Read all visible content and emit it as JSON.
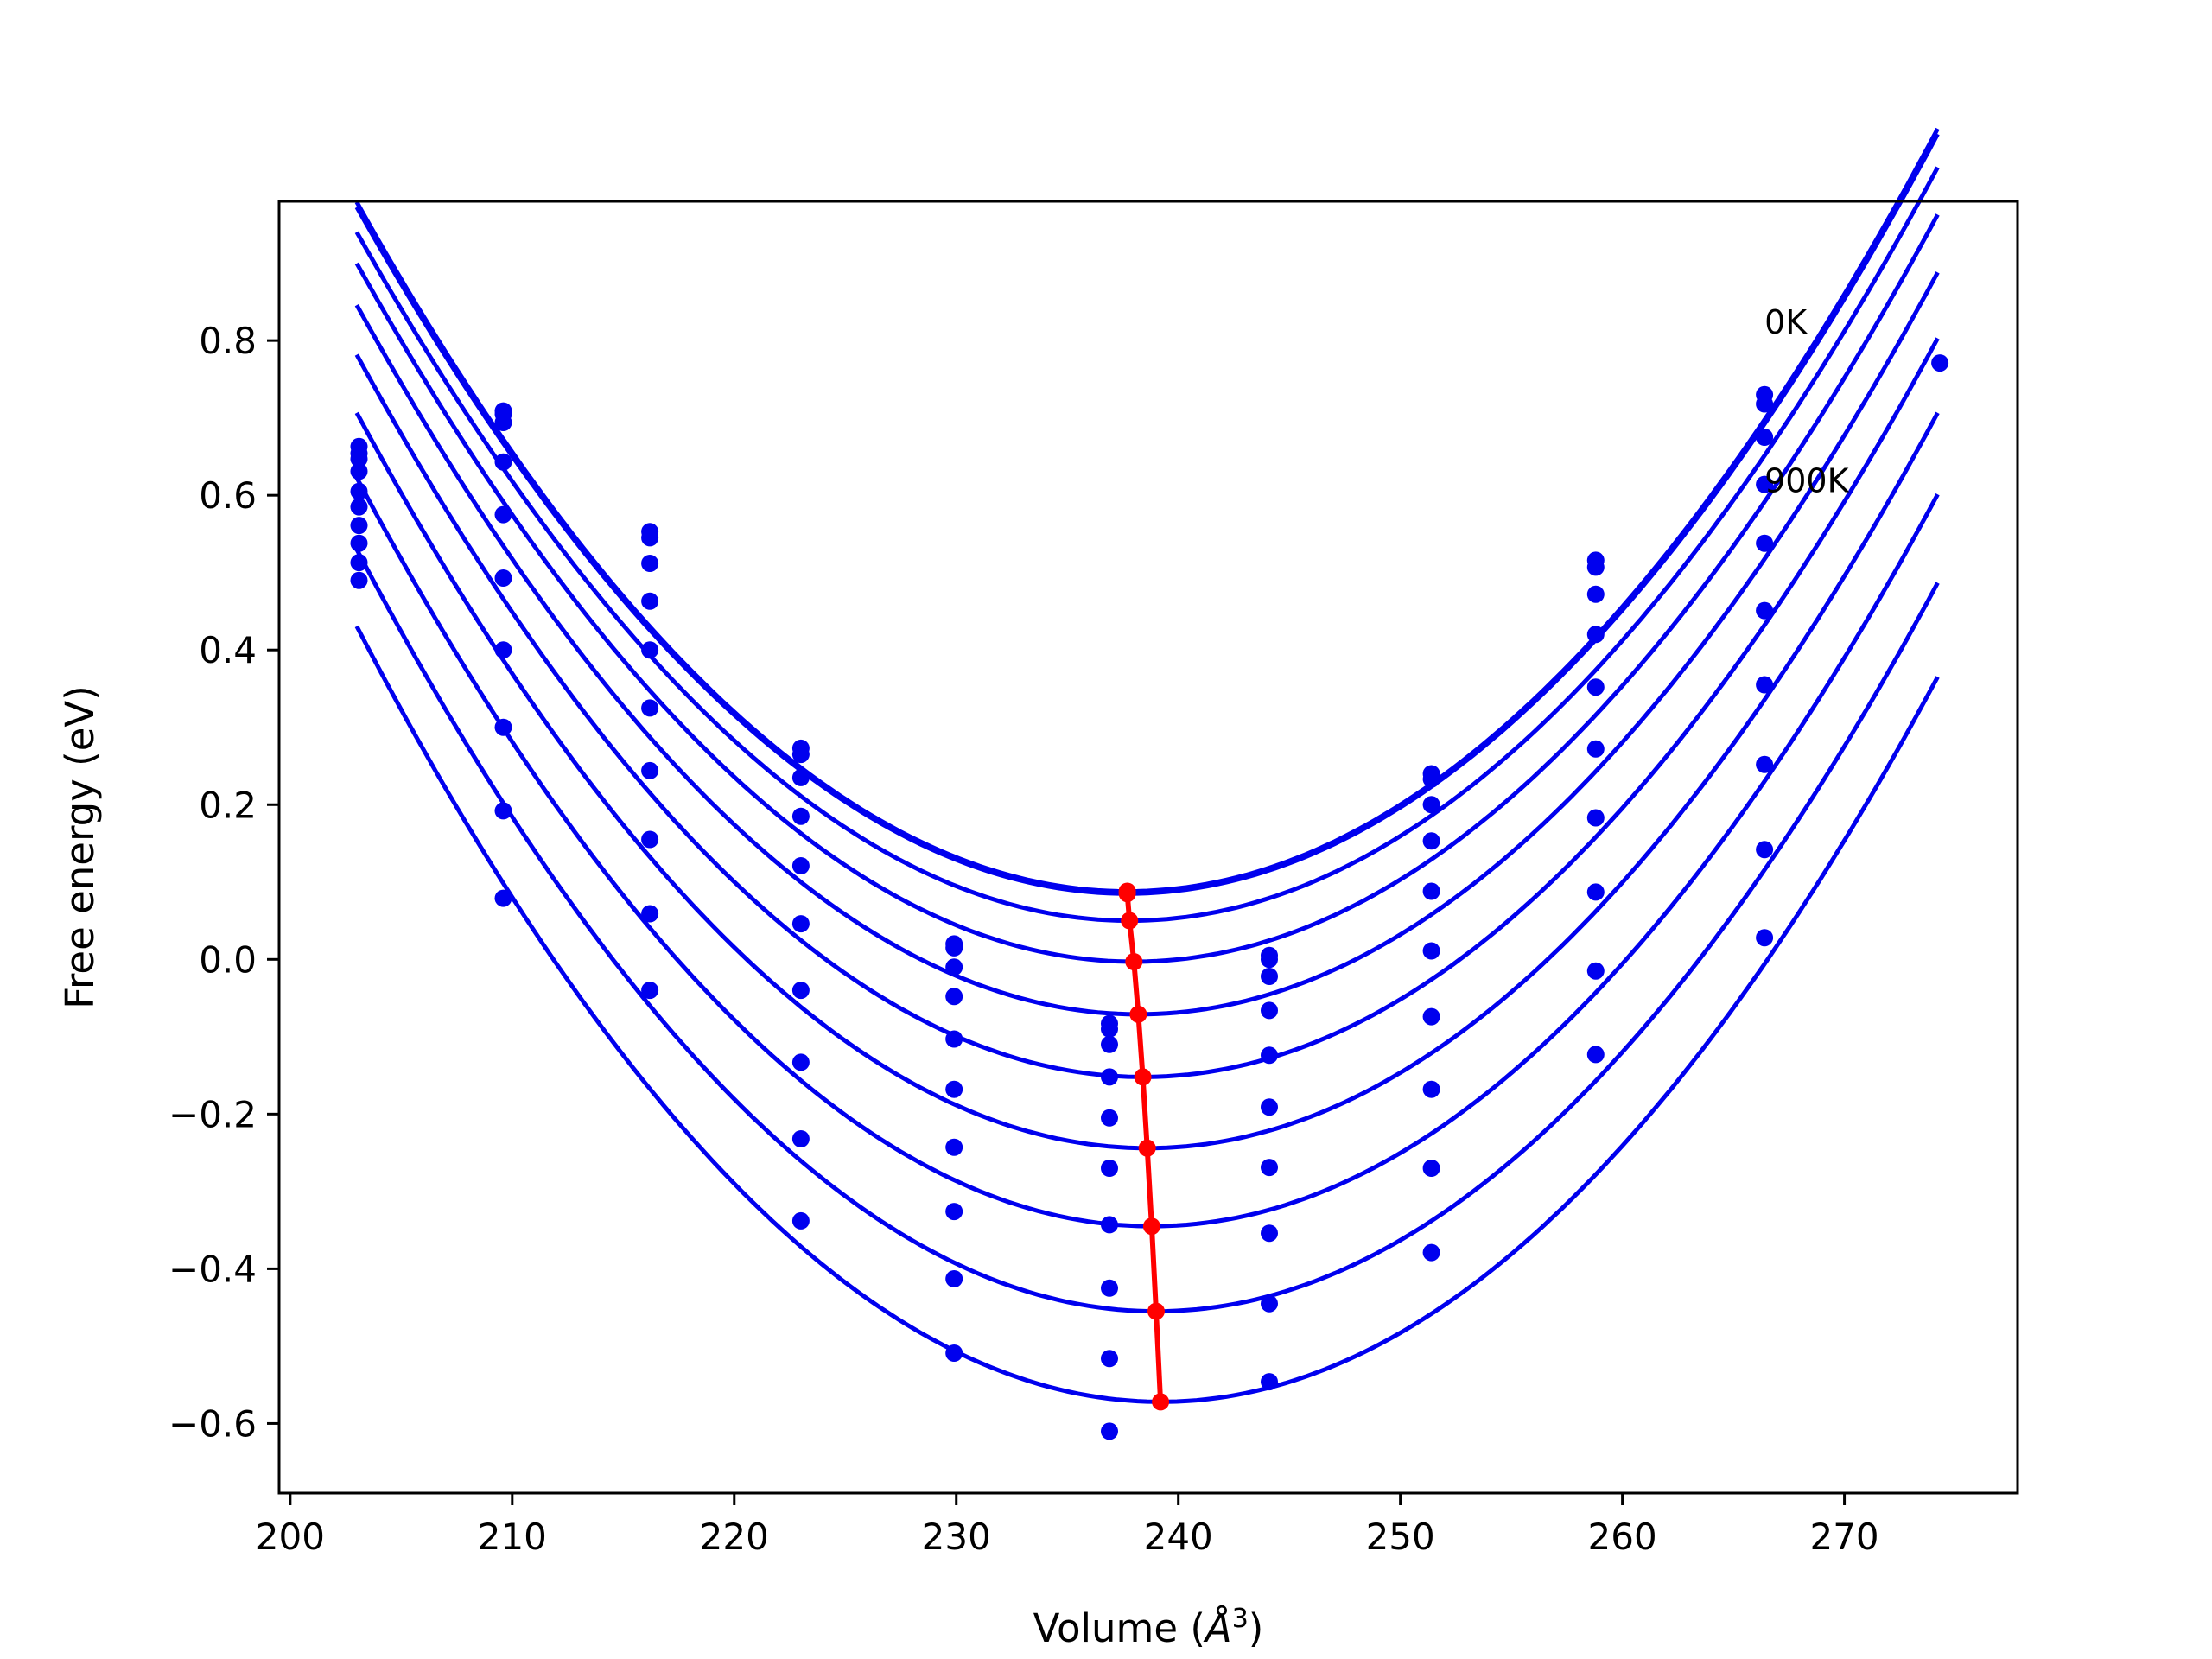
{
  "chart_data": {
    "type": "scatter",
    "xlabel_text": "Volume (",
    "xlabel_symbol": "Å",
    "xlabel_exp": "3",
    "xlabel_close": ")",
    "ylabel": "Free energy (eV)",
    "xlim": [
      199.5,
      277.8
    ],
    "ylim": [
      -0.69,
      0.98
    ],
    "xticks": [
      200,
      210,
      220,
      230,
      240,
      250,
      260,
      270
    ],
    "yticks": [
      -0.6,
      -0.4,
      -0.2,
      0.0,
      0.2,
      0.4,
      0.6,
      0.8
    ],
    "ytick_labels": [
      "−0.6",
      "−0.4",
      "−0.2",
      "0.0",
      "0.2",
      "0.4",
      "0.6",
      "0.8"
    ],
    "fit_range": [
      203.0,
      274.2
    ],
    "grid": false,
    "legend": "none",
    "annotations": [
      {
        "text": "0K",
        "x": 266.4,
        "y": 0.825
      },
      {
        "text": "900K",
        "x": 266.4,
        "y": 0.62
      }
    ],
    "colors": {
      "curves": "#0000ee",
      "points": "#0000ee",
      "minimum_line": "#ff0000"
    },
    "series": [
      {
        "curve": {
          "V0": 237.7,
          "E0": 0.088,
          "a": 0.00074
        },
        "points": [
          [
            203.1,
            0.663
          ],
          [
            209.6,
            0.709
          ],
          [
            216.2,
            0.553
          ],
          [
            223.0,
            0.273
          ],
          [
            229.9,
            0.02
          ],
          [
            236.9,
            -0.083
          ],
          [
            244.1,
            0.005
          ],
          [
            251.4,
            0.24
          ],
          [
            258.8,
            0.516
          ],
          [
            266.4,
            0.73
          ]
        ]
      },
      {
        "curve": {
          "V0": 237.7,
          "E0": 0.085,
          "a": 0.000737
        },
        "points": [
          [
            203.1,
            0.654
          ],
          [
            209.6,
            0.705
          ],
          [
            216.2,
            0.545
          ],
          [
            223.0,
            0.265
          ],
          [
            229.9,
            0.015
          ],
          [
            236.9,
            -0.09
          ],
          [
            244.1,
            0.0
          ],
          [
            251.4,
            0.233
          ],
          [
            258.8,
            0.507
          ],
          [
            266.4,
            0.718
          ]
        ]
      },
      {
        "curve": {
          "V0": 237.8,
          "E0": 0.05,
          "a": 0.000735
        },
        "points": [
          [
            203.1,
            0.647
          ],
          [
            209.6,
            0.694
          ],
          [
            216.2,
            0.512
          ],
          [
            223.0,
            0.235
          ],
          [
            229.9,
            -0.01
          ],
          [
            236.9,
            -0.11
          ],
          [
            244.1,
            -0.022
          ],
          [
            251.4,
            0.2
          ],
          [
            258.8,
            0.472
          ],
          [
            266.4,
            0.675
          ]
        ]
      },
      {
        "curve": {
          "V0": 238.0,
          "E0": -0.003,
          "a": 0.000737
        },
        "points": [
          [
            203.1,
            0.631
          ],
          [
            209.6,
            0.643
          ],
          [
            216.2,
            0.463
          ],
          [
            223.0,
            0.185
          ],
          [
            229.9,
            -0.048
          ],
          [
            236.9,
            -0.152
          ],
          [
            244.1,
            -0.066
          ],
          [
            251.4,
            0.153
          ],
          [
            258.8,
            0.42
          ],
          [
            266.4,
            0.614
          ]
        ]
      },
      {
        "curve": {
          "V0": 238.2,
          "E0": -0.071,
          "a": 0.00074
        },
        "points": [
          [
            203.1,
            0.605
          ],
          [
            209.6,
            0.575
          ],
          [
            216.2,
            0.4
          ],
          [
            223.0,
            0.121
          ],
          [
            229.9,
            -0.103
          ],
          [
            236.9,
            -0.205
          ],
          [
            244.1,
            -0.124
          ],
          [
            251.4,
            0.088
          ],
          [
            258.8,
            0.352
          ],
          [
            266.4,
            0.538
          ]
        ]
      },
      {
        "curve": {
          "V0": 238.4,
          "E0": -0.152,
          "a": 0.000745
        },
        "points": [
          [
            203.1,
            0.585
          ],
          [
            209.6,
            0.493
          ],
          [
            216.2,
            0.325
          ],
          [
            223.0,
            0.046
          ],
          [
            229.9,
            -0.168
          ],
          [
            236.9,
            -0.27
          ],
          [
            244.1,
            -0.191
          ],
          [
            251.4,
            0.011
          ],
          [
            258.8,
            0.272
          ],
          [
            266.4,
            0.451
          ]
        ]
      },
      {
        "curve": {
          "V0": 238.6,
          "E0": -0.244,
          "a": 0.00075
        },
        "points": [
          [
            203.1,
            0.561
          ],
          [
            209.6,
            0.4
          ],
          [
            216.2,
            0.244
          ],
          [
            223.0,
            -0.04
          ],
          [
            229.9,
            -0.243
          ],
          [
            236.9,
            -0.343
          ],
          [
            244.1,
            -0.269
          ],
          [
            251.4,
            -0.074
          ],
          [
            258.8,
            0.183
          ],
          [
            266.4,
            0.355
          ]
        ]
      },
      {
        "curve": {
          "V0": 238.8,
          "E0": -0.345,
          "a": 0.000755
        },
        "points": [
          [
            203.1,
            0.538
          ],
          [
            209.6,
            0.3
          ],
          [
            216.2,
            0.155
          ],
          [
            223.0,
            -0.133
          ],
          [
            229.9,
            -0.326
          ],
          [
            236.9,
            -0.425
          ],
          [
            244.1,
            -0.354
          ],
          [
            251.4,
            -0.168
          ],
          [
            258.8,
            0.087
          ],
          [
            266.4,
            0.252
          ]
        ]
      },
      {
        "curve": {
          "V0": 239.0,
          "E0": -0.455,
          "a": 0.00076
        },
        "points": [
          [
            203.1,
            0.513
          ],
          [
            209.6,
            0.192
          ],
          [
            216.2,
            0.059
          ],
          [
            223.0,
            -0.232
          ],
          [
            229.9,
            -0.413
          ],
          [
            236.9,
            -0.516
          ],
          [
            244.1,
            -0.445
          ],
          [
            251.4,
            -0.27
          ],
          [
            258.8,
            -0.015
          ],
          [
            266.4,
            0.142
          ]
        ]
      },
      {
        "curve": {
          "V0": 239.2,
          "E0": -0.572,
          "a": 0.000765
        },
        "points": [
          [
            203.1,
            0.49
          ],
          [
            209.6,
            0.079
          ],
          [
            216.2,
            -0.04
          ],
          [
            223.0,
            -0.338
          ],
          [
            229.9,
            -0.509
          ],
          [
            236.9,
            -0.61
          ],
          [
            244.1,
            -0.546
          ],
          [
            251.4,
            -0.379
          ],
          [
            258.8,
            -0.123
          ],
          [
            266.4,
            0.028
          ],
          [
            274.3,
            0.771
          ]
        ]
      }
    ],
    "minimum_line": {
      "points": [
        [
          237.7,
          0.088
        ],
        [
          237.7,
          0.085
        ],
        [
          237.8,
          0.05
        ],
        [
          238.0,
          -0.003
        ],
        [
          238.2,
          -0.071
        ],
        [
          238.4,
          -0.152
        ],
        [
          238.6,
          -0.244
        ],
        [
          238.8,
          -0.345
        ],
        [
          239.0,
          -0.455
        ],
        [
          239.2,
          -0.572
        ]
      ]
    }
  }
}
